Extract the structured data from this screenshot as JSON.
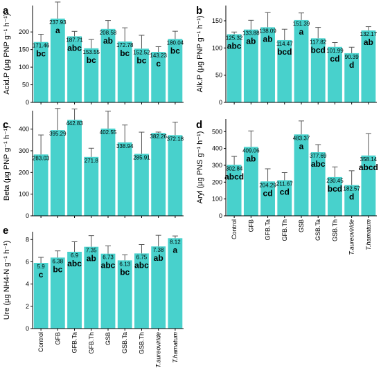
{
  "colors": {
    "bar": "#48D1CC",
    "axis": "#000000",
    "error": "#555555"
  },
  "categories": [
    "Control",
    "GFB",
    "GFB.Ta",
    "GFB.Th",
    "GSB",
    "GSB.Ta",
    "GSB.Th",
    "T.aureoviride",
    "T.hamatum"
  ],
  "chart_data": [
    {
      "panel": "a",
      "type": "bar",
      "ylabel": "Acid.P (µg PNP g⁻¹ h⁻¹)",
      "ylim": [
        0,
        275
      ],
      "yticks": [
        0,
        50,
        100,
        150,
        200
      ],
      "values": [
        171.46,
        237.93,
        187.71,
        153.55,
        208.58,
        172.78,
        152.52,
        143.23,
        180.04
      ],
      "value_labels": [
        "171.46",
        "237.93",
        "187.71",
        "153.55",
        "208.58",
        "172.78",
        "152.52",
        "143.23",
        "180.04"
      ],
      "errors": [
        22,
        47,
        14,
        25,
        24,
        39,
        38,
        15,
        22
      ],
      "significance": [
        "bc",
        "a",
        "abc",
        "bc",
        "ab",
        "bc",
        "bc",
        "c",
        "bc"
      ],
      "show_x_labels": false
    },
    {
      "panel": "b",
      "type": "bar",
      "ylabel": "Alk.P (µg PNP g⁻¹ h⁻¹)",
      "ylim": [
        0,
        178
      ],
      "yticks": [
        0,
        50,
        100,
        150
      ],
      "values": [
        125.32,
        133.88,
        138.09,
        114.47,
        151.39,
        117.82,
        101.99,
        90.39,
        132.17
      ],
      "value_labels": [
        "125.32",
        "133.88",
        "138.09",
        "114.47",
        "151.39",
        "117.82",
        "101.99",
        "90.39",
        "132.17"
      ],
      "errors": [
        4,
        17,
        27,
        20,
        13,
        20,
        8,
        11,
        7
      ],
      "significance": [
        "abc",
        "ab",
        "ab",
        "bcd",
        "a",
        "bcd",
        "cd",
        "d",
        "ab"
      ],
      "show_x_labels": false
    },
    {
      "panel": "c",
      "type": "bar",
      "ylabel": "Beta (µg PNP g⁻¹ h⁻¹)",
      "ylim": [
        0,
        485
      ],
      "yticks": [
        0,
        100,
        200,
        300,
        400
      ],
      "values": [
        283.03,
        395.29,
        442.83,
        271.8,
        402.55,
        338.94,
        285.91,
        382.26,
        372.18
      ],
      "value_labels": [
        "283.03",
        "395.29",
        "442.83",
        "271.8",
        "402.55",
        "338.94",
        "285.91",
        "382.26",
        "372.18"
      ],
      "errors": [
        90,
        100,
        50,
        40,
        80,
        80,
        100,
        4,
        60
      ],
      "significance": [
        "",
        "",
        "",
        "",
        "",
        "",
        "",
        "",
        ""
      ],
      "show_x_labels": false
    },
    {
      "panel": "d",
      "type": "bar",
      "ylabel": "Aryl (µg PNS g⁻¹ h⁻¹)",
      "ylim": [
        0,
        575
      ],
      "yticks": [
        0,
        100,
        200,
        300,
        400,
        500
      ],
      "values": [
        302.84,
        409.06,
        204.29,
        211.67,
        483.37,
        377.69,
        230.45,
        182.57,
        358.14
      ],
      "value_labels": [
        "302.84",
        "409.06",
        "204.29",
        "211.67",
        "483.37",
        "377.69",
        "230.45",
        "182.57",
        "358.14"
      ],
      "errors": [
        50,
        95,
        75,
        45,
        80,
        45,
        60,
        85,
        130
      ],
      "significance": [
        "abcd",
        "ab",
        "cd",
        "cd",
        "a",
        "abc",
        "bcd",
        "d",
        "abcd"
      ],
      "show_x_labels": true
    },
    {
      "panel": "e",
      "type": "bar",
      "ylabel": "Ure (µg NH4-N g⁻¹ h⁻¹)",
      "ylim": [
        0,
        8.7
      ],
      "yticks": [
        0,
        2,
        4,
        6,
        8
      ],
      "values": [
        5.9,
        6.38,
        6.9,
        7.35,
        6.73,
        6.13,
        6.75,
        7.38,
        8.12
      ],
      "value_labels": [
        "5.9",
        "6.38",
        "6.9",
        "7.35",
        "6.73",
        "6.13",
        "6.75",
        "7.38",
        "8.12"
      ],
      "errors": [
        0.5,
        0.6,
        0.9,
        1.0,
        0.7,
        0.5,
        0.8,
        1.0,
        0.2
      ],
      "significance": [
        "c",
        "bc",
        "abc",
        "ab",
        "abc",
        "bc",
        "abc",
        "ab",
        "a"
      ],
      "show_x_labels": true
    }
  ]
}
